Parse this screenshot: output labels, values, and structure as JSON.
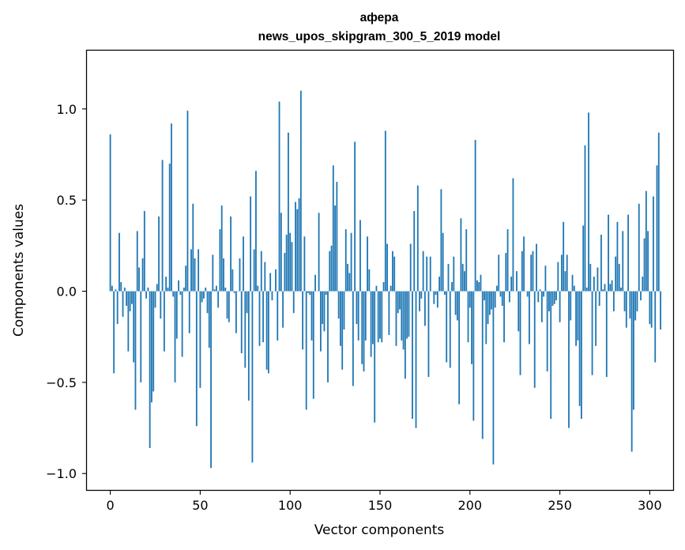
{
  "chart_data": {
    "type": "bar",
    "title": "афера",
    "subtitle": "news_upos_skipgram_300_5_2019 model",
    "xlabel": "Vector components",
    "ylabel": "Components values",
    "xlim": [
      -13,
      313
    ],
    "ylim": [
      -1.09,
      1.32
    ],
    "xticks": [
      0,
      50,
      100,
      150,
      200,
      250,
      300
    ],
    "xtick_labels": [
      "0",
      "50",
      "100",
      "150",
      "200",
      "250",
      "300"
    ],
    "yticks": [
      1.0,
      0.5,
      0.0,
      -0.5,
      -1.0
    ],
    "ytick_labels": [
      "1.0",
      "0.5",
      "0.0",
      "−0.5",
      "−1.0"
    ],
    "bar_color": "#1f77b4",
    "values": [
      0.86,
      0.03,
      -0.45,
      0.01,
      -0.18,
      0.32,
      0.05,
      -0.14,
      0.02,
      -0.08,
      -0.33,
      -0.11,
      -0.07,
      -0.39,
      -0.65,
      0.33,
      0.13,
      -0.5,
      0.18,
      0.44,
      -0.04,
      0.02,
      -0.86,
      -0.61,
      -0.55,
      -0.09,
      0.04,
      0.41,
      -0.15,
      0.72,
      -0.33,
      0.08,
      0.02,
      0.7,
      0.92,
      -0.03,
      -0.5,
      -0.26,
      0.06,
      -0.02,
      -0.36,
      0.02,
      0.14,
      0.99,
      -0.23,
      0.23,
      0.48,
      0.18,
      -0.74,
      0.23,
      -0.53,
      -0.06,
      -0.04,
      0.02,
      -0.12,
      -0.31,
      -0.97,
      0.2,
      0.01,
      0.03,
      -0.09,
      0.34,
      0.47,
      0.18,
      0.02,
      -0.15,
      -0.17,
      0.41,
      0.12,
      -0.01,
      -0.23,
      0.0,
      0.18,
      -0.34,
      0.3,
      -0.42,
      -0.12,
      -0.6,
      0.52,
      -0.94,
      0.23,
      0.66,
      0.03,
      -0.3,
      0.22,
      -0.28,
      0.16,
      -0.43,
      -0.45,
      0.1,
      -0.05,
      0.0,
      0.12,
      -0.27,
      1.04,
      0.43,
      -0.2,
      0.21,
      0.31,
      0.87,
      0.32,
      0.27,
      -0.12,
      0.49,
      0.45,
      0.51,
      1.1,
      -0.32,
      0.3,
      -0.65,
      -0.01,
      -0.02,
      -0.27,
      -0.59,
      0.09,
      0.0,
      0.43,
      -0.33,
      -0.18,
      -0.22,
      -0.02,
      -0.5,
      0.22,
      0.25,
      0.69,
      0.47,
      0.6,
      -0.15,
      -0.3,
      -0.43,
      -0.21,
      0.34,
      0.15,
      0.1,
      0.32,
      -0.52,
      0.82,
      -0.18,
      -0.27,
      0.39,
      -0.4,
      -0.44,
      -0.27,
      0.3,
      0.12,
      -0.36,
      -0.29,
      -0.72,
      0.03,
      -0.28,
      -0.26,
      -0.28,
      0.05,
      0.88,
      0.26,
      -0.24,
      0.03,
      0.22,
      0.19,
      -0.3,
      -0.12,
      -0.1,
      -0.27,
      -0.32,
      -0.48,
      -0.26,
      -0.25,
      0.26,
      -0.7,
      0.44,
      -0.75,
      0.58,
      -0.11,
      -0.04,
      0.22,
      -0.19,
      0.19,
      -0.47,
      0.19,
      0.0,
      -0.07,
      -0.02,
      -0.09,
      0.08,
      0.56,
      0.32,
      -0.02,
      -0.39,
      0.15,
      -0.42,
      0.05,
      0.19,
      -0.13,
      -0.16,
      -0.62,
      0.4,
      0.15,
      0.11,
      0.34,
      -0.28,
      -0.09,
      -0.4,
      -0.71,
      0.83,
      0.06,
      0.05,
      0.09,
      -0.81,
      -0.05,
      -0.29,
      -0.18,
      -0.13,
      -0.1,
      -0.95,
      -0.09,
      0.03,
      0.2,
      -0.03,
      -0.08,
      -0.28,
      0.21,
      0.34,
      -0.06,
      0.08,
      0.62,
      0.0,
      0.11,
      -0.22,
      -0.46,
      0.22,
      0.3,
      0.0,
      -0.03,
      -0.29,
      0.2,
      0.22,
      -0.53,
      0.26,
      -0.06,
      0.01,
      -0.17,
      -0.03,
      0.14,
      -0.44,
      -0.11,
      -0.7,
      -0.08,
      -0.07,
      -0.05,
      0.16,
      -0.17,
      0.2,
      0.38,
      0.11,
      0.2,
      -0.75,
      -0.16,
      0.09,
      0.03,
      -0.3,
      -0.27,
      -0.63,
      -0.7,
      0.36,
      0.8,
      0.02,
      0.98,
      0.15,
      -0.46,
      0.08,
      -0.3,
      0.13,
      -0.08,
      0.31,
      0.01,
      0.04,
      -0.47,
      0.42,
      0.04,
      0.06,
      -0.11,
      0.19,
      0.38,
      0.15,
      0.02,
      0.33,
      -0.11,
      -0.2,
      0.42,
      -0.15,
      -0.88,
      -0.65,
      -0.16,
      -0.11,
      0.48,
      -0.05,
      0.08,
      0.29,
      0.55,
      0.33,
      -0.18,
      -0.2,
      0.52,
      -0.39,
      0.69,
      0.87,
      -0.21
    ]
  }
}
